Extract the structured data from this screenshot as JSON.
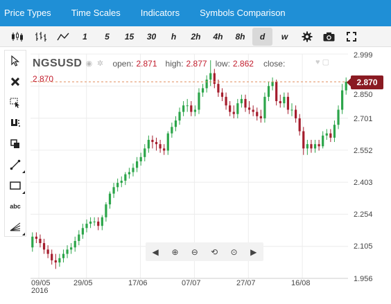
{
  "menu": [
    "Price Types",
    "Time Scales",
    "Indicators",
    "Symbols Comparison"
  ],
  "toolbar": {
    "icons": [
      "candlestick-icon",
      "ohlc-bars-icon",
      "line-chart-icon"
    ],
    "periods": [
      "1",
      "5",
      "15",
      "30",
      "h",
      "2h",
      "4h",
      "8h",
      "d",
      "w"
    ],
    "active_period": "d"
  },
  "sidebar": [
    "cursor-arrow-icon",
    "delete-x-icon",
    "select-box-icon",
    "magnet-icon",
    "copy-icon",
    "trend-line-icon",
    "rectangle-icon",
    "text-tool-icon",
    "fan-icon"
  ],
  "sidebar_text_tool": "abc",
  "symbol": "NGSUSD",
  "ohlc": {
    "open_label": "open:",
    "open": "2.871",
    "high_label": "high:",
    "high": "2.877",
    "low_label": "low:",
    "low": "2.862",
    "close_label": "close:"
  },
  "current_level": "2.870",
  "current_price": "2.870",
  "y_axis": [
    "2.999",
    "2.850",
    "2.701",
    "2.552",
    "2.403",
    "2.254",
    "2.105",
    "1.956"
  ],
  "x_axis": [
    "09/05",
    "29/05",
    "17/06",
    "07/07",
    "27/07",
    "16/08"
  ],
  "x_year": "2016",
  "colors": {
    "up": "#2ca54a",
    "down": "#a51d2d",
    "accent": "#1f8fd6",
    "price_tag": "#8a1a22"
  },
  "chart_data": {
    "type": "candlestick",
    "ylim": [
      1.956,
      2.999
    ],
    "x": [
      "05/05",
      "06/05",
      "09/05",
      "10/05",
      "11/05",
      "12/05",
      "13/05",
      "16/05",
      "17/05",
      "18/05",
      "19/05",
      "20/05",
      "23/05",
      "24/05",
      "25/05",
      "26/05",
      "27/05",
      "30/05",
      "31/05",
      "01/06",
      "02/06",
      "03/06",
      "06/06",
      "07/06",
      "08/06",
      "09/06",
      "10/06",
      "13/06",
      "14/06",
      "15/06",
      "16/06",
      "17/06",
      "20/06",
      "21/06",
      "22/06",
      "23/06",
      "24/06",
      "27/06",
      "28/06",
      "29/06",
      "30/06",
      "01/07",
      "04/07",
      "05/07",
      "06/07",
      "07/07",
      "08/07",
      "11/07",
      "12/07",
      "13/07",
      "14/07",
      "15/07",
      "18/07",
      "19/07",
      "20/07",
      "21/07",
      "22/07",
      "25/07",
      "26/07",
      "27/07",
      "28/07",
      "29/07",
      "01/08",
      "02/08",
      "03/08",
      "04/08",
      "05/08",
      "08/08",
      "09/08",
      "10/08",
      "11/08",
      "12/08",
      "15/08",
      "16/08",
      "17/08",
      "18/08",
      "19/08",
      "22/08",
      "23/08",
      "24/08",
      "25/08",
      "26/08"
    ],
    "open": [
      2.1,
      2.15,
      2.14,
      2.12,
      2.09,
      2.07,
      2.04,
      2.03,
      2.05,
      2.07,
      2.09,
      2.1,
      2.13,
      2.16,
      2.19,
      2.21,
      2.22,
      2.22,
      2.2,
      2.24,
      2.3,
      2.35,
      2.38,
      2.4,
      2.41,
      2.44,
      2.45,
      2.47,
      2.5,
      2.52,
      2.56,
      2.6,
      2.59,
      2.58,
      2.56,
      2.55,
      2.63,
      2.66,
      2.69,
      2.73,
      2.76,
      2.76,
      2.73,
      2.74,
      2.82,
      2.84,
      2.88,
      2.91,
      2.86,
      2.82,
      2.8,
      2.76,
      2.73,
      2.72,
      2.77,
      2.79,
      2.75,
      2.74,
      2.73,
      2.71,
      2.7,
      2.8,
      2.85,
      2.87,
      2.78,
      2.77,
      2.8,
      2.74,
      2.74,
      2.7,
      2.64,
      2.56,
      2.58,
      2.56,
      2.58,
      2.57,
      2.62,
      2.63,
      2.61,
      2.67,
      2.74,
      2.83
    ],
    "close": [
      2.15,
      2.14,
      2.12,
      2.09,
      2.07,
      2.04,
      2.03,
      2.05,
      2.07,
      2.09,
      2.1,
      2.13,
      2.16,
      2.19,
      2.21,
      2.22,
      2.22,
      2.2,
      2.24,
      2.3,
      2.35,
      2.38,
      2.4,
      2.41,
      2.44,
      2.45,
      2.47,
      2.5,
      2.52,
      2.56,
      2.6,
      2.59,
      2.58,
      2.56,
      2.55,
      2.63,
      2.66,
      2.69,
      2.73,
      2.76,
      2.76,
      2.73,
      2.74,
      2.82,
      2.84,
      2.88,
      2.91,
      2.86,
      2.82,
      2.8,
      2.76,
      2.73,
      2.72,
      2.77,
      2.79,
      2.75,
      2.74,
      2.73,
      2.71,
      2.7,
      2.8,
      2.85,
      2.87,
      2.78,
      2.77,
      2.8,
      2.74,
      2.74,
      2.7,
      2.64,
      2.56,
      2.58,
      2.56,
      2.58,
      2.57,
      2.62,
      2.63,
      2.61,
      2.67,
      2.74,
      2.83,
      2.87
    ],
    "high": [
      2.17,
      2.17,
      2.16,
      2.14,
      2.11,
      2.09,
      2.07,
      2.07,
      2.09,
      2.11,
      2.12,
      2.15,
      2.18,
      2.21,
      2.23,
      2.24,
      2.24,
      2.24,
      2.25,
      2.31,
      2.36,
      2.4,
      2.42,
      2.43,
      2.45,
      2.47,
      2.49,
      2.52,
      2.54,
      2.58,
      2.62,
      2.62,
      2.61,
      2.6,
      2.58,
      2.64,
      2.68,
      2.71,
      2.75,
      2.78,
      2.79,
      2.78,
      2.76,
      2.84,
      2.86,
      2.9,
      2.97,
      2.93,
      2.88,
      2.84,
      2.82,
      2.78,
      2.76,
      2.79,
      2.81,
      2.81,
      2.78,
      2.76,
      2.75,
      2.74,
      2.82,
      2.87,
      2.89,
      2.88,
      2.81,
      2.82,
      2.82,
      2.77,
      2.76,
      2.72,
      2.66,
      2.6,
      2.6,
      2.6,
      2.6,
      2.64,
      2.65,
      2.65,
      2.69,
      2.76,
      2.86,
      2.89
    ],
    "low": [
      2.08,
      2.12,
      2.1,
      2.07,
      2.05,
      2.02,
      2.0,
      2.01,
      2.03,
      2.05,
      2.07,
      2.08,
      2.11,
      2.14,
      2.17,
      2.19,
      2.2,
      2.18,
      2.18,
      2.22,
      2.28,
      2.33,
      2.36,
      2.38,
      2.39,
      2.42,
      2.43,
      2.45,
      2.48,
      2.5,
      2.54,
      2.56,
      2.55,
      2.54,
      2.53,
      2.53,
      2.61,
      2.64,
      2.67,
      2.71,
      2.73,
      2.71,
      2.71,
      2.72,
      2.8,
      2.82,
      2.85,
      2.84,
      2.8,
      2.78,
      2.74,
      2.71,
      2.7,
      2.7,
      2.75,
      2.73,
      2.72,
      2.71,
      2.69,
      2.68,
      2.68,
      2.78,
      2.83,
      2.76,
      2.75,
      2.75,
      2.72,
      2.71,
      2.68,
      2.62,
      2.53,
      2.53,
      2.54,
      2.54,
      2.55,
      2.56,
      2.6,
      2.59,
      2.59,
      2.65,
      2.72,
      2.81
    ]
  }
}
